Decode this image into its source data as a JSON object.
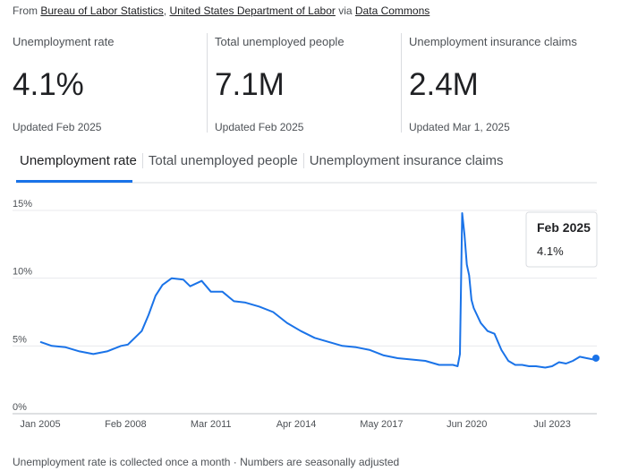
{
  "source": [
    "From ",
    "Bureau of Labor Statistics",
    ", ",
    "United States Department of Labor",
    " via ",
    "Data Commons"
  ],
  "source_links": [
    false,
    true,
    false,
    true,
    false,
    true
  ],
  "stats": [
    {
      "label": "Unemployment rate",
      "value": "4.1%",
      "updated": "Updated Feb 2025"
    },
    {
      "label": "Total unemployed people",
      "value": "7.1M",
      "updated": "Updated Feb 2025"
    },
    {
      "label": "Unemployment insurance claims",
      "value": "2.4M",
      "updated": "Updated Mar 1, 2025"
    }
  ],
  "tabs": [
    "Unemployment rate",
    "Total unemployed people",
    "Unemployment insurance claims"
  ],
  "footer": "Unemployment rate is collected once a month · Numbers are seasonally adjusted",
  "chart_data": {
    "type": "line",
    "x": [
      "2005-01",
      "2005-06",
      "2005-12",
      "2006-06",
      "2006-12",
      "2007-06",
      "2007-12",
      "2008-03",
      "2008-06",
      "2008-09",
      "2008-12",
      "2009-03",
      "2009-06",
      "2009-10",
      "2010-03",
      "2010-06",
      "2010-11",
      "2011-03",
      "2011-08",
      "2012-01",
      "2012-06",
      "2012-12",
      "2013-06",
      "2013-12",
      "2014-06",
      "2014-12",
      "2015-06",
      "2015-12",
      "2016-06",
      "2016-12",
      "2017-06",
      "2017-12",
      "2018-06",
      "2018-12",
      "2019-06",
      "2019-12",
      "2020-02",
      "2020-03",
      "2020-04",
      "2020-05",
      "2020-06",
      "2020-07",
      "2020-08",
      "2020-09",
      "2020-12",
      "2021-03",
      "2021-06",
      "2021-09",
      "2021-12",
      "2022-03",
      "2022-06",
      "2022-09",
      "2022-12",
      "2023-04",
      "2023-07",
      "2023-10",
      "2024-01",
      "2024-04",
      "2024-07",
      "2024-10",
      "2025-01",
      "2025-02"
    ],
    "series": [
      {
        "name": "Unemployment rate",
        "color": "#1a73e8",
        "values": [
          5.3,
          5.0,
          4.9,
          4.6,
          4.4,
          4.6,
          5.0,
          5.1,
          5.6,
          6.1,
          7.3,
          8.7,
          9.5,
          10.0,
          9.9,
          9.4,
          9.8,
          9.0,
          9.0,
          8.3,
          8.2,
          7.9,
          7.5,
          6.7,
          6.1,
          5.6,
          5.3,
          5.0,
          4.9,
          4.7,
          4.3,
          4.1,
          4.0,
          3.9,
          3.6,
          3.6,
          3.5,
          4.4,
          14.8,
          13.2,
          11.0,
          10.2,
          8.4,
          7.8,
          6.7,
          6.1,
          5.9,
          4.7,
          3.9,
          3.6,
          3.6,
          3.5,
          3.5,
          3.4,
          3.5,
          3.8,
          3.7,
          3.9,
          4.2,
          4.1,
          4.0,
          4.1
        ]
      }
    ],
    "xlim": [
      "2005-01",
      "2025-02"
    ],
    "xticks": [
      {
        "value": "2005-01",
        "label": "Jan 2005"
      },
      {
        "value": "2008-02",
        "label": "Feb 2008"
      },
      {
        "value": "2011-03",
        "label": "Mar 2011"
      },
      {
        "value": "2014-04",
        "label": "Apr 2014"
      },
      {
        "value": "2017-05",
        "label": "May 2017"
      },
      {
        "value": "2020-06",
        "label": "Jun 2020"
      },
      {
        "value": "2023-07",
        "label": "Jul 2023"
      }
    ],
    "ylim": [
      0,
      15
    ],
    "yticks": [
      {
        "value": 0,
        "label": "0%"
      },
      {
        "value": 5,
        "label": "5%"
      },
      {
        "value": 10,
        "label": "10%"
      },
      {
        "value": 15,
        "label": "15%"
      }
    ],
    "grid": true,
    "tooltip": {
      "x_label": "Feb 2025",
      "value": 4.1,
      "value_label": "4.1%"
    }
  }
}
